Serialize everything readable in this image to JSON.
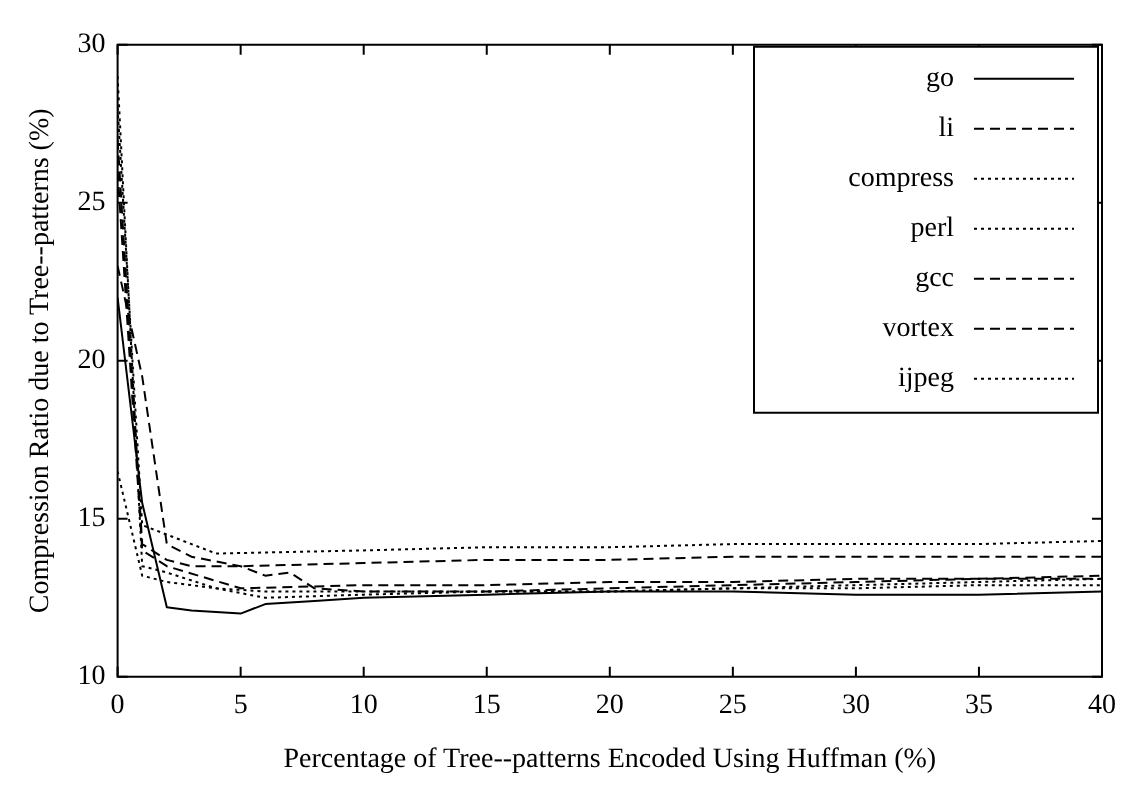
{
  "chart_data": {
    "type": "line",
    "xlabel": "Percentage of Tree--patterns Encoded Using Huffman (%)",
    "ylabel": "Compression Ratio due to Tree--patterns (%)",
    "xlim": [
      0,
      40
    ],
    "ylim": [
      10,
      30
    ],
    "xticks": [
      0,
      5,
      10,
      15,
      20,
      25,
      30,
      35,
      40
    ],
    "yticks": [
      10,
      15,
      20,
      25,
      30
    ],
    "grid": false,
    "legend": "top right",
    "marker": "none",
    "series": [
      {
        "name": "go",
        "color": "#000000",
        "line_style": "solid",
        "x": [
          0,
          1,
          2,
          3,
          5,
          6,
          8,
          10,
          15,
          20,
          25,
          30,
          35,
          40
        ],
        "values": [
          22,
          15.5,
          12.2,
          12.1,
          12.0,
          12.3,
          12.4,
          12.5,
          12.6,
          12.7,
          12.7,
          12.6,
          12.6,
          12.7
        ]
      },
      {
        "name": "li",
        "color": "#000000",
        "line_style": "dashed",
        "x": [
          0,
          1,
          2,
          3,
          5,
          6,
          7,
          8,
          10,
          15,
          20,
          25,
          30,
          35,
          40
        ],
        "values": [
          23,
          19.5,
          14.2,
          13.8,
          13.5,
          13.2,
          13.3,
          12.8,
          12.7,
          12.7,
          12.8,
          12.9,
          13.0,
          13.1,
          13.2
        ]
      },
      {
        "name": "compress",
        "color": "#000000",
        "line_style": "dotted",
        "x": [
          0,
          1,
          2,
          4,
          6,
          10,
          15,
          20,
          25,
          30,
          35,
          40
        ],
        "values": [
          16.5,
          13.2,
          13.0,
          12.8,
          12.5,
          12.6,
          12.7,
          12.7,
          12.8,
          12.8,
          12.9,
          12.9
        ]
      },
      {
        "name": "perl",
        "color": "#000000",
        "line_style": "dotted",
        "x": [
          0,
          1,
          2,
          4,
          10,
          15,
          20,
          25,
          30,
          35,
          40
        ],
        "values": [
          28,
          14.8,
          14.5,
          13.9,
          14.0,
          14.1,
          14.1,
          14.2,
          14.2,
          14.2,
          14.3
        ]
      },
      {
        "name": "gcc",
        "color": "#000000",
        "line_style": "dashed",
        "x": [
          0,
          1,
          2,
          5,
          10,
          15,
          20,
          25,
          30,
          35,
          40
        ],
        "values": [
          26,
          14.0,
          13.5,
          12.8,
          12.9,
          12.9,
          13.0,
          13.0,
          13.1,
          13.1,
          13.1
        ]
      },
      {
        "name": "vortex",
        "color": "#000000",
        "line_style": "dashed",
        "x": [
          0,
          1,
          2,
          3,
          5,
          10,
          15,
          20,
          25,
          30,
          35,
          40
        ],
        "values": [
          27,
          14.2,
          13.7,
          13.5,
          13.5,
          13.6,
          13.7,
          13.7,
          13.8,
          13.8,
          13.8,
          13.8
        ]
      },
      {
        "name": "ijpeg",
        "color": "#000000",
        "line_style": "dotted",
        "x": [
          0,
          1,
          2,
          4,
          6,
          10,
          15,
          20,
          25,
          30,
          35,
          40
        ],
        "values": [
          29,
          13.5,
          13.3,
          12.8,
          12.7,
          12.7,
          12.7,
          12.7,
          12.8,
          12.9,
          13.0,
          13.1
        ]
      }
    ]
  }
}
